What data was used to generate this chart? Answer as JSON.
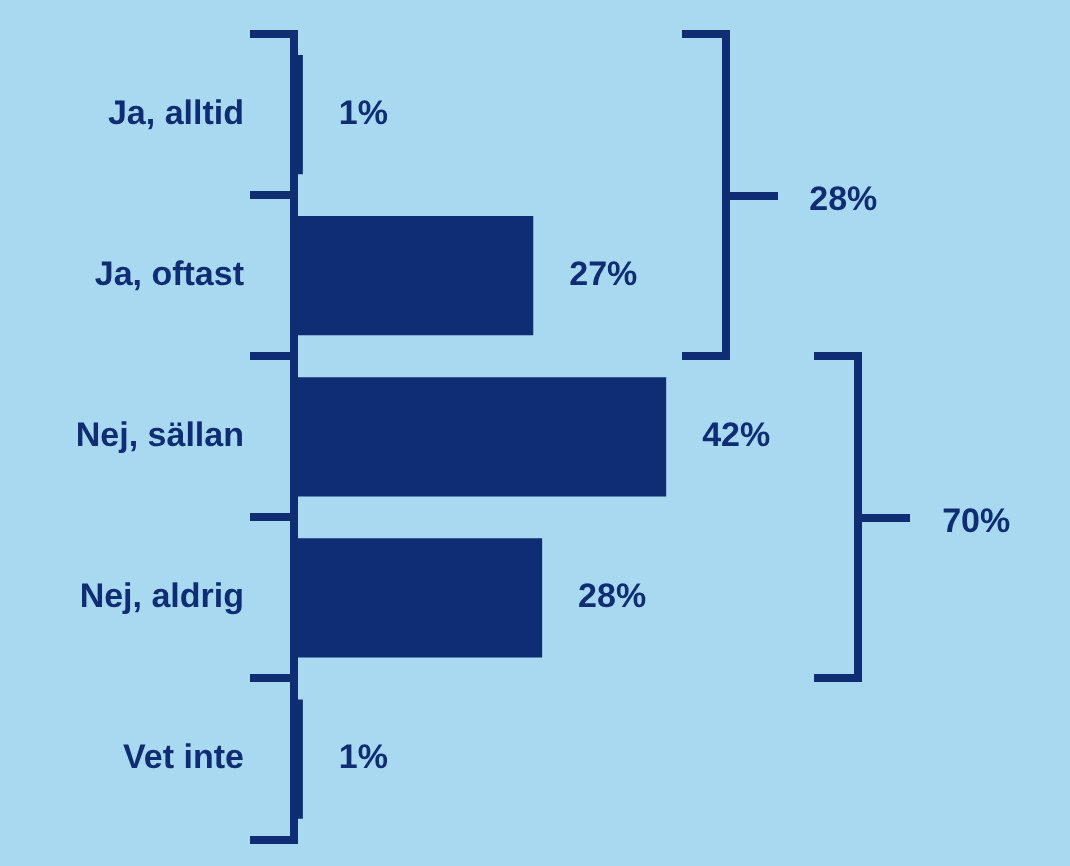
{
  "chart_data": {
    "type": "bar",
    "orientation": "horizontal",
    "categories": [
      "Ja, alltid",
      "Ja, oftast",
      "Nej, sällan",
      "Nej, aldrig",
      "Vet inte"
    ],
    "values": [
      1,
      27,
      42,
      28,
      1
    ],
    "value_labels": [
      "1%",
      "27%",
      "42%",
      "28%",
      "1%"
    ],
    "color": "#0f2d72",
    "annotations": [
      "28%",
      "70%"
    ],
    "legend": false,
    "grid": false
  }
}
